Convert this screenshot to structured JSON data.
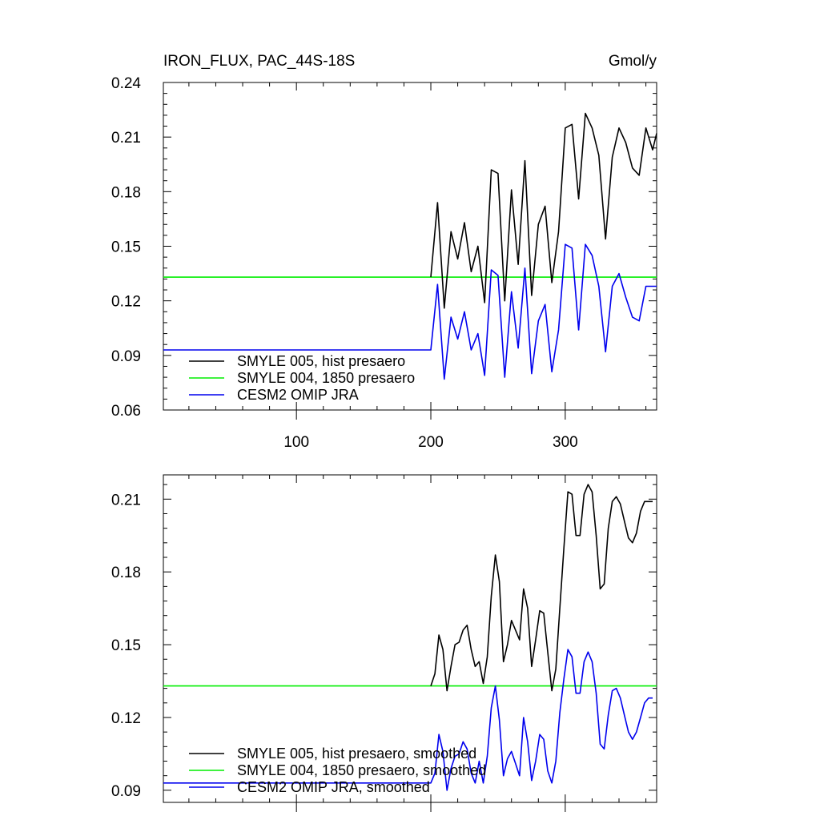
{
  "page": {
    "title": "IRON_FLUX, PAC_44S-18S",
    "units": "Gmol/y"
  },
  "colors": {
    "hist": "#000000",
    "presaero1850": "#00ee00",
    "omip": "#0000ee"
  },
  "chart_data": [
    {
      "type": "line",
      "title": "IRON_FLUX, PAC_44S-18S",
      "units": "Gmol/y",
      "xlim": [
        1,
        368
      ],
      "ylim": [
        0.06,
        0.24
      ],
      "x_ticks": [
        100,
        200,
        300
      ],
      "x_tick_labels": [
        "100",
        "200",
        "300"
      ],
      "y_ticks": [
        0.06,
        0.09,
        0.12,
        0.15,
        0.18,
        0.21,
        0.24
      ],
      "y_tick_labels": [
        "0.06",
        "0.09",
        "0.12",
        "0.15",
        "0.18",
        "0.21",
        "0.24"
      ],
      "grid": false,
      "legend_position": "bottom-left",
      "series": [
        {
          "name": "SMYLE 005, hist presaero",
          "color": "#000000",
          "x": [
            200,
            205,
            210,
            215,
            220,
            225,
            230,
            235,
            240,
            245,
            250,
            255,
            260,
            265,
            270,
            275,
            280,
            285,
            290,
            295,
            300,
            305,
            310,
            315,
            320,
            325,
            330,
            335,
            340,
            345,
            350,
            355,
            360,
            365,
            368
          ],
          "y": [
            0.133,
            0.174,
            0.116,
            0.158,
            0.143,
            0.163,
            0.136,
            0.15,
            0.119,
            0.192,
            0.19,
            0.12,
            0.181,
            0.14,
            0.197,
            0.123,
            0.162,
            0.172,
            0.13,
            0.158,
            0.215,
            0.217,
            0.176,
            0.223,
            0.215,
            0.2,
            0.154,
            0.199,
            0.215,
            0.207,
            0.193,
            0.189,
            0.215,
            0.203,
            0.212
          ]
        },
        {
          "name": "SMYLE 004, 1850 presaero",
          "color": "#00ee00",
          "x": [
            1,
            368
          ],
          "y": [
            0.133,
            0.133
          ]
        },
        {
          "name": "CESM2 OMIP JRA",
          "color": "#0000ee",
          "x": [
            1,
            200,
            205,
            210,
            215,
            220,
            225,
            230,
            235,
            240,
            245,
            250,
            255,
            260,
            265,
            270,
            275,
            280,
            285,
            290,
            295,
            300,
            305,
            310,
            315,
            320,
            325,
            330,
            335,
            340,
            345,
            350,
            355,
            360,
            365,
            368
          ],
          "y": [
            0.093,
            0.093,
            0.129,
            0.077,
            0.111,
            0.099,
            0.114,
            0.093,
            0.102,
            0.079,
            0.137,
            0.134,
            0.078,
            0.125,
            0.094,
            0.138,
            0.08,
            0.109,
            0.118,
            0.081,
            0.104,
            0.151,
            0.149,
            0.104,
            0.151,
            0.145,
            0.128,
            0.092,
            0.128,
            0.135,
            0.122,
            0.111,
            0.109,
            0.128,
            0.128,
            0.128
          ]
        }
      ]
    },
    {
      "type": "line",
      "xlim": [
        1,
        368
      ],
      "ylim": [
        0.085,
        0.22
      ],
      "x_ticks": [
        100,
        200,
        300
      ],
      "y_ticks": [
        0.09,
        0.12,
        0.15,
        0.18,
        0.21
      ],
      "y_tick_labels": [
        "0.09",
        "0.12",
        "0.15",
        "0.18",
        "0.21"
      ],
      "grid": false,
      "legend_position": "bottom-left",
      "series": [
        {
          "name": "SMYLE 005, hist presaero, smoothed",
          "color": "#000000",
          "x": [
            200,
            203,
            206,
            209,
            212,
            215,
            218,
            221,
            224,
            227,
            230,
            233,
            236,
            239,
            242,
            245,
            248,
            251,
            254,
            257,
            260,
            263,
            266,
            269,
            272,
            275,
            278,
            281,
            284,
            287,
            290,
            293,
            296,
            299,
            302,
            305,
            308,
            311,
            314,
            317,
            320,
            323,
            326,
            329,
            332,
            335,
            338,
            341,
            344,
            347,
            350,
            353,
            356,
            359,
            362,
            365
          ],
          "y": [
            0.133,
            0.138,
            0.154,
            0.148,
            0.131,
            0.141,
            0.15,
            0.151,
            0.156,
            0.158,
            0.148,
            0.141,
            0.143,
            0.134,
            0.145,
            0.17,
            0.187,
            0.176,
            0.143,
            0.15,
            0.16,
            0.156,
            0.152,
            0.173,
            0.165,
            0.141,
            0.152,
            0.164,
            0.163,
            0.147,
            0.131,
            0.14,
            0.165,
            0.19,
            0.213,
            0.212,
            0.195,
            0.195,
            0.212,
            0.216,
            0.213,
            0.195,
            0.173,
            0.175,
            0.198,
            0.209,
            0.211,
            0.208,
            0.201,
            0.194,
            0.192,
            0.196,
            0.205,
            0.209,
            0.209,
            0.209
          ]
        },
        {
          "name": "SMYLE 004, 1850 presaero, smoothed",
          "color": "#00ee00",
          "x": [
            1,
            368
          ],
          "y": [
            0.133,
            0.133
          ]
        },
        {
          "name": "CESM2 OMIP JRA, smoothed",
          "color": "#0000ee",
          "x": [
            1,
            200,
            203,
            206,
            209,
            212,
            215,
            218,
            221,
            224,
            227,
            230,
            233,
            236,
            239,
            242,
            245,
            248,
            251,
            254,
            257,
            260,
            263,
            266,
            269,
            272,
            275,
            278,
            281,
            284,
            287,
            290,
            293,
            296,
            299,
            302,
            305,
            308,
            311,
            314,
            317,
            320,
            323,
            326,
            329,
            332,
            335,
            338,
            341,
            344,
            347,
            350,
            353,
            356,
            359,
            362,
            365
          ],
          "y": [
            0.093,
            0.093,
            0.097,
            0.113,
            0.106,
            0.09,
            0.099,
            0.104,
            0.105,
            0.11,
            0.107,
            0.097,
            0.093,
            0.102,
            0.093,
            0.104,
            0.124,
            0.133,
            0.119,
            0.096,
            0.103,
            0.106,
            0.101,
            0.096,
            0.12,
            0.11,
            0.094,
            0.102,
            0.113,
            0.111,
            0.098,
            0.093,
            0.102,
            0.122,
            0.136,
            0.148,
            0.145,
            0.13,
            0.13,
            0.143,
            0.147,
            0.143,
            0.13,
            0.109,
            0.107,
            0.121,
            0.131,
            0.132,
            0.128,
            0.121,
            0.114,
            0.111,
            0.114,
            0.12,
            0.126,
            0.128,
            0.128
          ]
        }
      ]
    }
  ]
}
